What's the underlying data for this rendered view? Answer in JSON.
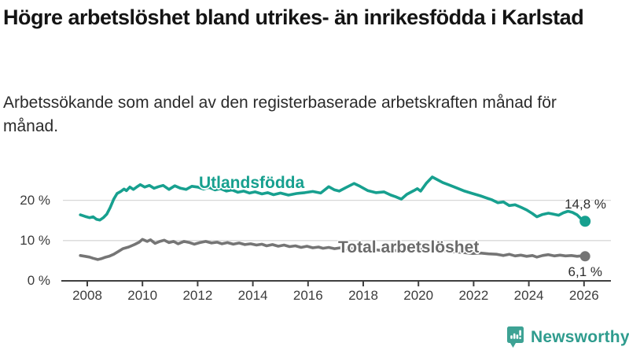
{
  "header": {
    "title": "Högre arbetslöshet bland utrikes- än inrikesfödda i Karlstad",
    "subtitle": "Arbetssökande som andel av den registerbaserade arbetskraften månad för månad."
  },
  "footer": {
    "brand_name": "Newsworthy",
    "logo_icon": "bar-chart-speech-bubble-icon"
  },
  "colors": {
    "foreign_born_line": "#17A08F",
    "total_line": "#757575",
    "grid": "#d8d8d8",
    "axis": "#3f3f3f",
    "brand_teal": "#2f9c8e"
  },
  "chart_data": {
    "type": "line",
    "title": "Högre arbetslöshet bland utrikes- än inrikesfödda i Karlstad",
    "subtitle": "Arbetssökande som andel av den registerbaserade arbetskraften månad för månad.",
    "xlabel": "",
    "ylabel": "",
    "grid": "horizontal",
    "legend_position": "inline-on-lines",
    "x_ticks": [
      "2008",
      "2010",
      "2012",
      "2014",
      "2016",
      "2018",
      "2020",
      "2022",
      "2024",
      "2026"
    ],
    "y_ticks": [
      {
        "value": 0,
        "label": "0 %"
      },
      {
        "value": 10,
        "label": "10 %"
      },
      {
        "value": 20,
        "label": "20 %"
      }
    ],
    "x_range": [
      2007.6,
      2026.5
    ],
    "y_range": [
      0,
      31
    ],
    "series": [
      {
        "name": "Utlandsfödda",
        "color": "#17A08F",
        "end_value": 14.8,
        "end_value_label": "14,8 %",
        "points": [
          [
            2007.75,
            16.4
          ],
          [
            2007.92,
            16.0
          ],
          [
            2008.08,
            15.7
          ],
          [
            2008.21,
            15.9
          ],
          [
            2008.33,
            15.3
          ],
          [
            2008.46,
            15.1
          ],
          [
            2008.58,
            15.7
          ],
          [
            2008.71,
            16.6
          ],
          [
            2008.83,
            18.2
          ],
          [
            2008.96,
            20.3
          ],
          [
            2009.08,
            21.7
          ],
          [
            2009.21,
            22.2
          ],
          [
            2009.33,
            22.8
          ],
          [
            2009.42,
            22.4
          ],
          [
            2009.54,
            23.3
          ],
          [
            2009.67,
            22.7
          ],
          [
            2009.79,
            23.3
          ],
          [
            2009.92,
            23.9
          ],
          [
            2010.08,
            23.3
          ],
          [
            2010.25,
            23.7
          ],
          [
            2010.42,
            23.0
          ],
          [
            2010.58,
            23.4
          ],
          [
            2010.75,
            23.7
          ],
          [
            2010.96,
            22.7
          ],
          [
            2011.17,
            23.6
          ],
          [
            2011.38,
            23.0
          ],
          [
            2011.58,
            22.7
          ],
          [
            2011.79,
            23.5
          ],
          [
            2012.0,
            23.3
          ],
          [
            2012.21,
            22.8
          ],
          [
            2012.42,
            23.2
          ],
          [
            2012.63,
            22.6
          ],
          [
            2012.83,
            22.9
          ],
          [
            2013.04,
            22.3
          ],
          [
            2013.25,
            22.6
          ],
          [
            2013.46,
            22.0
          ],
          [
            2013.67,
            22.3
          ],
          [
            2013.88,
            21.8
          ],
          [
            2014.08,
            22.1
          ],
          [
            2014.33,
            21.6
          ],
          [
            2014.54,
            21.9
          ],
          [
            2014.75,
            21.4
          ],
          [
            2015.0,
            21.8
          ],
          [
            2015.29,
            21.3
          ],
          [
            2015.58,
            21.7
          ],
          [
            2015.88,
            21.9
          ],
          [
            2016.17,
            22.2
          ],
          [
            2016.46,
            21.8
          ],
          [
            2016.75,
            23.4
          ],
          [
            2016.96,
            22.6
          ],
          [
            2017.13,
            22.3
          ],
          [
            2017.38,
            23.2
          ],
          [
            2017.67,
            24.2
          ],
          [
            2017.88,
            23.5
          ],
          [
            2018.17,
            22.4
          ],
          [
            2018.46,
            21.9
          ],
          [
            2018.75,
            22.1
          ],
          [
            2019.0,
            21.3
          ],
          [
            2019.17,
            20.9
          ],
          [
            2019.38,
            20.3
          ],
          [
            2019.58,
            21.5
          ],
          [
            2019.83,
            22.4
          ],
          [
            2019.96,
            22.9
          ],
          [
            2020.08,
            22.3
          ],
          [
            2020.29,
            24.3
          ],
          [
            2020.5,
            25.8
          ],
          [
            2020.67,
            25.2
          ],
          [
            2020.88,
            24.4
          ],
          [
            2021.08,
            23.9
          ],
          [
            2021.38,
            23.1
          ],
          [
            2021.67,
            22.3
          ],
          [
            2021.96,
            21.7
          ],
          [
            2022.25,
            21.1
          ],
          [
            2022.46,
            20.6
          ],
          [
            2022.67,
            20.1
          ],
          [
            2022.88,
            19.4
          ],
          [
            2023.08,
            19.6
          ],
          [
            2023.29,
            18.7
          ],
          [
            2023.5,
            18.9
          ],
          [
            2023.71,
            18.3
          ],
          [
            2023.92,
            17.6
          ],
          [
            2024.13,
            16.7
          ],
          [
            2024.29,
            15.9
          ],
          [
            2024.5,
            16.5
          ],
          [
            2024.71,
            16.8
          ],
          [
            2024.88,
            16.6
          ],
          [
            2025.08,
            16.3
          ],
          [
            2025.25,
            16.9
          ],
          [
            2025.42,
            17.3
          ],
          [
            2025.58,
            17.0
          ],
          [
            2025.75,
            16.4
          ],
          [
            2025.88,
            15.5
          ],
          [
            2026.04,
            14.8
          ]
        ]
      },
      {
        "name": "Total arbetslöshet",
        "color": "#757575",
        "end_value": 6.1,
        "end_value_label": "6,1 %",
        "points": [
          [
            2007.75,
            6.3
          ],
          [
            2007.92,
            6.1
          ],
          [
            2008.08,
            5.9
          ],
          [
            2008.21,
            5.6
          ],
          [
            2008.38,
            5.3
          ],
          [
            2008.5,
            5.5
          ],
          [
            2008.63,
            5.8
          ],
          [
            2008.79,
            6.1
          ],
          [
            2008.96,
            6.6
          ],
          [
            2009.13,
            7.3
          ],
          [
            2009.29,
            8.0
          ],
          [
            2009.5,
            8.4
          ],
          [
            2009.71,
            9.0
          ],
          [
            2009.88,
            9.6
          ],
          [
            2010.0,
            10.3
          ],
          [
            2010.17,
            9.8
          ],
          [
            2010.29,
            10.2
          ],
          [
            2010.46,
            9.3
          ],
          [
            2010.63,
            9.8
          ],
          [
            2010.79,
            10.1
          ],
          [
            2010.96,
            9.5
          ],
          [
            2011.13,
            9.8
          ],
          [
            2011.29,
            9.2
          ],
          [
            2011.5,
            9.8
          ],
          [
            2011.71,
            9.5
          ],
          [
            2011.88,
            9.1
          ],
          [
            2012.08,
            9.5
          ],
          [
            2012.29,
            9.8
          ],
          [
            2012.5,
            9.4
          ],
          [
            2012.71,
            9.6
          ],
          [
            2012.88,
            9.2
          ],
          [
            2013.08,
            9.5
          ],
          [
            2013.29,
            9.1
          ],
          [
            2013.5,
            9.4
          ],
          [
            2013.71,
            9.0
          ],
          [
            2013.92,
            9.2
          ],
          [
            2014.13,
            8.9
          ],
          [
            2014.33,
            9.1
          ],
          [
            2014.5,
            8.7
          ],
          [
            2014.71,
            9.0
          ],
          [
            2014.92,
            8.6
          ],
          [
            2015.13,
            8.9
          ],
          [
            2015.33,
            8.5
          ],
          [
            2015.54,
            8.7
          ],
          [
            2015.75,
            8.3
          ],
          [
            2015.96,
            8.6
          ],
          [
            2016.17,
            8.2
          ],
          [
            2016.38,
            8.4
          ],
          [
            2016.54,
            8.1
          ],
          [
            2016.75,
            8.3
          ],
          [
            2016.96,
            8.0
          ],
          [
            2017.17,
            8.2
          ],
          [
            2017.42,
            7.9
          ],
          [
            2017.71,
            8.1
          ],
          [
            2018.0,
            7.8
          ],
          [
            2018.29,
            7.9
          ],
          [
            2018.58,
            7.6
          ],
          [
            2018.88,
            7.8
          ],
          [
            2019.17,
            7.5
          ],
          [
            2019.5,
            7.7
          ],
          [
            2019.79,
            7.4
          ],
          [
            2020.04,
            7.8
          ],
          [
            2020.29,
            8.2
          ],
          [
            2020.5,
            8.0
          ],
          [
            2020.79,
            7.7
          ],
          [
            2021.08,
            7.4
          ],
          [
            2021.38,
            7.2
          ],
          [
            2021.67,
            7.0
          ],
          [
            2021.96,
            6.8
          ],
          [
            2022.25,
            6.9
          ],
          [
            2022.54,
            6.7
          ],
          [
            2022.83,
            6.6
          ],
          [
            2023.08,
            6.3
          ],
          [
            2023.29,
            6.6
          ],
          [
            2023.5,
            6.2
          ],
          [
            2023.71,
            6.4
          ],
          [
            2023.92,
            6.1
          ],
          [
            2024.13,
            6.3
          ],
          [
            2024.29,
            5.9
          ],
          [
            2024.5,
            6.3
          ],
          [
            2024.71,
            6.5
          ],
          [
            2024.92,
            6.2
          ],
          [
            2025.13,
            6.4
          ],
          [
            2025.33,
            6.2
          ],
          [
            2025.54,
            6.3
          ],
          [
            2025.75,
            6.1
          ],
          [
            2025.88,
            6.2
          ],
          [
            2026.04,
            6.1
          ]
        ]
      }
    ]
  }
}
